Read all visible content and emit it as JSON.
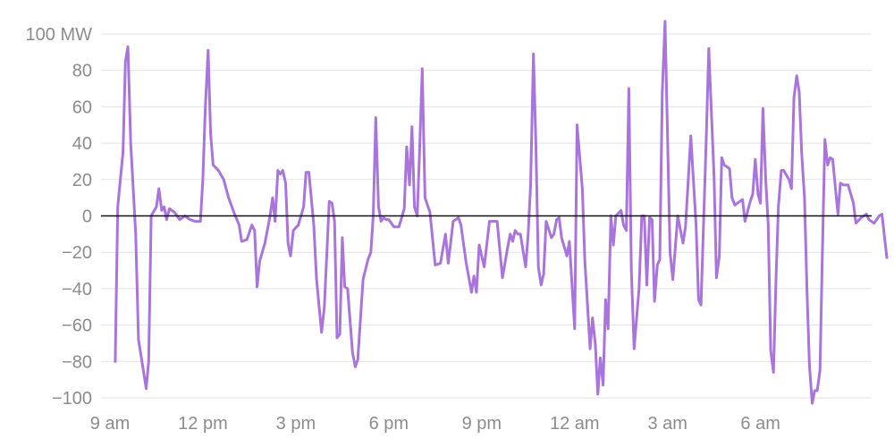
{
  "chart_data": {
    "type": "line",
    "title": "",
    "xlabel": "",
    "ylabel": "",
    "grid": true,
    "ylim": [
      -100,
      100
    ],
    "yticks": [
      {
        "value": 100,
        "label": "100 MW"
      },
      {
        "value": 80,
        "label": "80"
      },
      {
        "value": 60,
        "label": "60"
      },
      {
        "value": 40,
        "label": "40"
      },
      {
        "value": 20,
        "label": "20"
      },
      {
        "value": 0,
        "label": "0"
      },
      {
        "value": -20,
        "label": "−20"
      },
      {
        "value": -40,
        "label": "−40"
      },
      {
        "value": -60,
        "label": "−60"
      },
      {
        "value": -80,
        "label": "−80"
      },
      {
        "value": -100,
        "label": "−100"
      }
    ],
    "xlim": [
      0,
      25.75
    ],
    "x_unit": "hours from 9 am",
    "xticks": [
      {
        "value": 0,
        "label": "9 am"
      },
      {
        "value": 3,
        "label": "12 pm"
      },
      {
        "value": 6,
        "label": "3 pm"
      },
      {
        "value": 9,
        "label": "6 pm"
      },
      {
        "value": 12,
        "label": "9 pm"
      },
      {
        "value": 15,
        "label": "12 am"
      },
      {
        "value": 18,
        "label": "3 am"
      },
      {
        "value": 21,
        "label": "6 am"
      }
    ],
    "series": [
      {
        "color": "#a974dc",
        "points": [
          [
            0.17,
            -80
          ],
          [
            0.25,
            5
          ],
          [
            0.42,
            35
          ],
          [
            0.5,
            85
          ],
          [
            0.58,
            93
          ],
          [
            0.67,
            40
          ],
          [
            0.83,
            -10
          ],
          [
            0.92,
            -68
          ],
          [
            1.08,
            -85
          ],
          [
            1.17,
            -95
          ],
          [
            1.25,
            -80
          ],
          [
            1.33,
            0
          ],
          [
            1.5,
            5
          ],
          [
            1.58,
            15
          ],
          [
            1.67,
            3
          ],
          [
            1.75,
            5
          ],
          [
            1.83,
            -2
          ],
          [
            1.92,
            4
          ],
          [
            2.08,
            2
          ],
          [
            2.25,
            -2
          ],
          [
            2.42,
            0
          ],
          [
            2.58,
            -2
          ],
          [
            2.75,
            -3
          ],
          [
            2.92,
            -3
          ],
          [
            3.0,
            20
          ],
          [
            3.08,
            60
          ],
          [
            3.17,
            91
          ],
          [
            3.25,
            45
          ],
          [
            3.33,
            28
          ],
          [
            3.5,
            25
          ],
          [
            3.67,
            20
          ],
          [
            3.83,
            10
          ],
          [
            4.0,
            2
          ],
          [
            4.17,
            -5
          ],
          [
            4.25,
            -14
          ],
          [
            4.42,
            -13
          ],
          [
            4.58,
            -5
          ],
          [
            4.67,
            -8
          ],
          [
            4.75,
            -39
          ],
          [
            4.83,
            -25
          ],
          [
            5.0,
            -15
          ],
          [
            5.17,
            0
          ],
          [
            5.25,
            10
          ],
          [
            5.33,
            -3
          ],
          [
            5.42,
            25
          ],
          [
            5.5,
            23
          ],
          [
            5.58,
            25
          ],
          [
            5.67,
            18
          ],
          [
            5.75,
            -15
          ],
          [
            5.83,
            -22
          ],
          [
            5.92,
            -8
          ],
          [
            6.08,
            -5
          ],
          [
            6.25,
            5
          ],
          [
            6.33,
            24
          ],
          [
            6.42,
            24
          ],
          [
            6.58,
            -5
          ],
          [
            6.67,
            -35
          ],
          [
            6.83,
            -64
          ],
          [
            6.92,
            -50
          ],
          [
            7.08,
            8
          ],
          [
            7.17,
            7
          ],
          [
            7.25,
            -3
          ],
          [
            7.33,
            -67
          ],
          [
            7.42,
            -65
          ],
          [
            7.5,
            -12
          ],
          [
            7.58,
            -39
          ],
          [
            7.67,
            -40
          ],
          [
            7.83,
            -75
          ],
          [
            7.92,
            -83
          ],
          [
            8.0,
            -79
          ],
          [
            8.17,
            -35
          ],
          [
            8.33,
            -24
          ],
          [
            8.42,
            -20
          ],
          [
            8.5,
            0
          ],
          [
            8.58,
            54
          ],
          [
            8.67,
            5
          ],
          [
            8.75,
            -3
          ],
          [
            8.83,
            -1
          ],
          [
            8.92,
            -2
          ],
          [
            9.0,
            -2
          ],
          [
            9.17,
            -6
          ],
          [
            9.33,
            -6
          ],
          [
            9.5,
            4
          ],
          [
            9.58,
            38
          ],
          [
            9.67,
            17
          ],
          [
            9.75,
            49
          ],
          [
            9.83,
            5
          ],
          [
            9.92,
            0
          ],
          [
            10.0,
            38
          ],
          [
            10.08,
            81
          ],
          [
            10.17,
            10
          ],
          [
            10.33,
            2
          ],
          [
            10.5,
            -27
          ],
          [
            10.67,
            -26
          ],
          [
            10.83,
            -10
          ],
          [
            10.92,
            -26
          ],
          [
            11.08,
            -3
          ],
          [
            11.25,
            -1
          ],
          [
            11.33,
            -5
          ],
          [
            11.5,
            -26
          ],
          [
            11.67,
            -42
          ],
          [
            11.75,
            -33
          ],
          [
            11.83,
            -42
          ],
          [
            11.92,
            -16
          ],
          [
            12.08,
            -28
          ],
          [
            12.25,
            -3
          ],
          [
            12.5,
            -3
          ],
          [
            12.67,
            -34
          ],
          [
            12.83,
            -18
          ],
          [
            12.92,
            -10
          ],
          [
            13.0,
            -14
          ],
          [
            13.08,
            -8
          ],
          [
            13.17,
            -10
          ],
          [
            13.25,
            -10
          ],
          [
            13.42,
            -28
          ],
          [
            13.5,
            -10
          ],
          [
            13.58,
            17
          ],
          [
            13.67,
            89
          ],
          [
            13.75,
            40
          ],
          [
            13.83,
            -28
          ],
          [
            13.92,
            -38
          ],
          [
            14.0,
            -32
          ],
          [
            14.08,
            -3
          ],
          [
            14.25,
            -12
          ],
          [
            14.33,
            -10
          ],
          [
            14.42,
            -2
          ],
          [
            14.5,
            -1
          ],
          [
            14.58,
            -12
          ],
          [
            14.75,
            -22
          ],
          [
            14.83,
            -14
          ],
          [
            15.0,
            -62
          ],
          [
            15.08,
            50
          ],
          [
            15.25,
            15
          ],
          [
            15.33,
            -25
          ],
          [
            15.5,
            -73
          ],
          [
            15.58,
            -56
          ],
          [
            15.67,
            -71
          ],
          [
            15.75,
            -98
          ],
          [
            15.83,
            -78
          ],
          [
            15.92,
            -93
          ],
          [
            16.0,
            -46
          ],
          [
            16.08,
            -62
          ],
          [
            16.17,
            0
          ],
          [
            16.25,
            -16
          ],
          [
            16.33,
            0
          ],
          [
            16.5,
            3
          ],
          [
            16.58,
            -5
          ],
          [
            16.67,
            -8
          ],
          [
            16.75,
            70
          ],
          [
            16.83,
            -30
          ],
          [
            16.92,
            -73
          ],
          [
            17.08,
            -40
          ],
          [
            17.17,
            0
          ],
          [
            17.25,
            0
          ],
          [
            17.33,
            -38
          ],
          [
            17.42,
            -1
          ],
          [
            17.5,
            -2
          ],
          [
            17.58,
            -47
          ],
          [
            17.67,
            -27
          ],
          [
            17.75,
            -24
          ],
          [
            17.83,
            68
          ],
          [
            17.92,
            107
          ],
          [
            18.08,
            -20
          ],
          [
            18.17,
            -35
          ],
          [
            18.33,
            0
          ],
          [
            18.5,
            -15
          ],
          [
            18.58,
            -6
          ],
          [
            18.75,
            44
          ],
          [
            18.92,
            -5
          ],
          [
            19.0,
            -46
          ],
          [
            19.08,
            -49
          ],
          [
            19.25,
            43
          ],
          [
            19.33,
            92
          ],
          [
            19.5,
            22
          ],
          [
            19.58,
            -34
          ],
          [
            19.67,
            -22
          ],
          [
            19.75,
            32
          ],
          [
            19.83,
            28
          ],
          [
            19.92,
            27
          ],
          [
            20.0,
            26
          ],
          [
            20.08,
            10
          ],
          [
            20.17,
            6
          ],
          [
            20.25,
            7
          ],
          [
            20.42,
            9
          ],
          [
            20.5,
            -3
          ],
          [
            20.67,
            8
          ],
          [
            20.75,
            12
          ],
          [
            20.83,
            31
          ],
          [
            20.92,
            12
          ],
          [
            21.0,
            7
          ],
          [
            21.08,
            59
          ],
          [
            21.17,
            20
          ],
          [
            21.25,
            -5
          ],
          [
            21.33,
            -74
          ],
          [
            21.42,
            -86
          ],
          [
            21.5,
            -35
          ],
          [
            21.58,
            5
          ],
          [
            21.67,
            25
          ],
          [
            21.75,
            25
          ],
          [
            21.92,
            20
          ],
          [
            22.0,
            15
          ],
          [
            22.08,
            65
          ],
          [
            22.17,
            77
          ],
          [
            22.25,
            68
          ],
          [
            22.33,
            35
          ],
          [
            22.42,
            10
          ],
          [
            22.5,
            -40
          ],
          [
            22.58,
            -82
          ],
          [
            22.67,
            -103
          ],
          [
            22.75,
            -96
          ],
          [
            22.83,
            -96
          ],
          [
            22.92,
            -85
          ],
          [
            23.0,
            -20
          ],
          [
            23.08,
            42
          ],
          [
            23.17,
            28
          ],
          [
            23.25,
            32
          ],
          [
            23.33,
            31
          ],
          [
            23.5,
            1
          ],
          [
            23.58,
            18
          ],
          [
            23.67,
            17
          ],
          [
            23.83,
            17
          ],
          [
            24.0,
            7
          ],
          [
            24.08,
            -4
          ],
          [
            24.25,
            -1
          ],
          [
            24.42,
            1
          ],
          [
            24.5,
            -2
          ],
          [
            24.67,
            -4
          ],
          [
            24.83,
            0
          ],
          [
            24.92,
            1
          ],
          [
            25.08,
            -23
          ]
        ]
      }
    ]
  }
}
